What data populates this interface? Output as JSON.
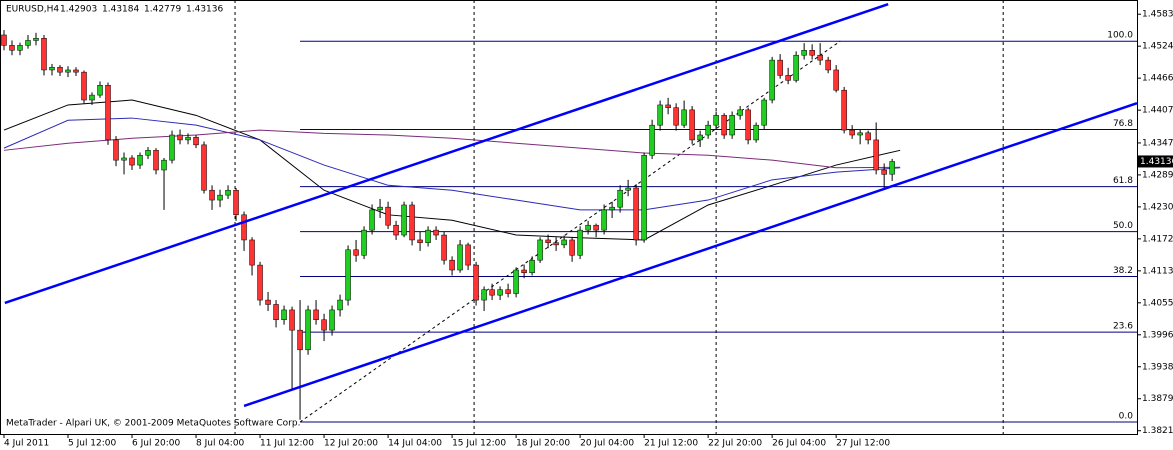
{
  "chart_data": {
    "type": "candlestick",
    "symbol": "EURUSD,H4",
    "footer": "MetaTrader - Alpari UK, © 2001-2009 MetaQuotes Software Corp.",
    "bull_color": "#22cc22",
    "bear_color": "#ff3333",
    "ylim": [
      1.3815,
      1.4609
    ],
    "xlim": [
      -0.5,
      141.6
    ],
    "yticks": [
      {
        "value": 1.4583,
        "label": "1.45830"
      },
      {
        "value": 1.45245,
        "label": "1.45245"
      },
      {
        "value": 1.4466,
        "label": "1.44660"
      },
      {
        "value": 1.44075,
        "label": "1.44075"
      },
      {
        "value": 1.43475,
        "label": "1.43475"
      },
      {
        "value": 1.4289,
        "label": "1.42890"
      },
      {
        "value": 1.42305,
        "label": "1.42305"
      },
      {
        "value": 1.4172,
        "label": "1.41720"
      },
      {
        "value": 1.41135,
        "label": "1.41135"
      },
      {
        "value": 1.4055,
        "label": "1.40550"
      },
      {
        "value": 1.39965,
        "label": "1.39965"
      },
      {
        "value": 1.3938,
        "label": "1.39380"
      },
      {
        "value": 1.38795,
        "label": "1.38795"
      },
      {
        "value": 1.3821,
        "label": "1.38210"
      }
    ],
    "xticks": [
      {
        "value": 0,
        "label": "4 Jul 2011"
      },
      {
        "value": 8,
        "label": "5 Jul 12:00"
      },
      {
        "value": 16,
        "label": "6 Jul 20:00"
      },
      {
        "value": 24,
        "label": "8 Jul 04:00"
      },
      {
        "value": 32,
        "label": "11 Jul 12:00"
      },
      {
        "value": 40,
        "label": "12 Jul 20:00"
      },
      {
        "value": 48,
        "label": "14 Jul 04:00"
      },
      {
        "value": 56,
        "label": "15 Jul 12:00"
      },
      {
        "value": 64,
        "label": "18 Jul 20:00"
      },
      {
        "value": 72,
        "label": "20 Jul 04:00"
      },
      {
        "value": 80,
        "label": "21 Jul 12:00"
      },
      {
        "value": 88,
        "label": "22 Jul 20:00"
      },
      {
        "value": 96,
        "label": "26 Jul 04:00"
      },
      {
        "value": 104,
        "label": "27 Jul 12:00"
      }
    ],
    "separators": [
      28.875,
      58.75,
      89,
      124.875
    ],
    "candles": [
      [
        1.4545,
        1.4554,
        1.4517,
        1.4526
      ],
      [
        1.4526,
        1.4535,
        1.4508,
        1.4517
      ],
      [
        1.4517,
        1.4531,
        1.4508,
        1.4526
      ],
      [
        1.4526,
        1.4545,
        1.452,
        1.4535
      ],
      [
        1.4535,
        1.4549,
        1.4526,
        1.4539
      ],
      [
        1.4539,
        1.4545,
        1.4471,
        1.4481
      ],
      [
        1.4481,
        1.4492,
        1.4471,
        1.4486
      ],
      [
        1.4486,
        1.449,
        1.447,
        1.4477
      ],
      [
        1.4477,
        1.4488,
        1.4468,
        1.4481
      ],
      [
        1.4481,
        1.4486,
        1.447,
        1.4477
      ],
      [
        1.4477,
        1.448,
        1.442,
        1.4426
      ],
      [
        1.4426,
        1.444,
        1.4417,
        1.4435
      ],
      [
        1.4435,
        1.446,
        1.443,
        1.4453
      ],
      [
        1.4453,
        1.4458,
        1.4344,
        1.4353
      ],
      [
        1.4353,
        1.436,
        1.4305,
        1.4316
      ],
      [
        1.4316,
        1.433,
        1.429,
        1.432
      ],
      [
        1.432,
        1.4325,
        1.4298,
        1.4307
      ],
      [
        1.4307,
        1.433,
        1.43,
        1.4325
      ],
      [
        1.4325,
        1.434,
        1.4318,
        1.4334
      ],
      [
        1.4334,
        1.4338,
        1.429,
        1.4298
      ],
      [
        1.4298,
        1.432,
        1.4225,
        1.4316
      ],
      [
        1.4316,
        1.437,
        1.431,
        1.4362
      ],
      [
        1.4362,
        1.4372,
        1.4345,
        1.4353
      ],
      [
        1.4353,
        1.4365,
        1.4345,
        1.4358
      ],
      [
        1.4358,
        1.4362,
        1.4338,
        1.4344
      ],
      [
        1.4344,
        1.435,
        1.4255,
        1.4261
      ],
      [
        1.4261,
        1.427,
        1.4225,
        1.4243
      ],
      [
        1.4243,
        1.4262,
        1.423,
        1.4252
      ],
      [
        1.4252,
        1.427,
        1.4245,
        1.4261
      ],
      [
        1.4261,
        1.4265,
        1.4205,
        1.4216
      ],
      [
        1.4216,
        1.4222,
        1.415,
        1.417
      ],
      [
        1.417,
        1.4175,
        1.4105,
        1.4124
      ],
      [
        1.4124,
        1.413,
        1.405,
        1.406
      ],
      [
        1.406,
        1.4075,
        1.404,
        1.4052
      ],
      [
        1.4052,
        1.406,
        1.401,
        1.4024
      ],
      [
        1.4024,
        1.405,
        1.4015,
        1.4042
      ],
      [
        1.4042,
        1.4048,
        1.3896,
        1.4005
      ],
      [
        1.4005,
        1.406,
        1.3841,
        1.3969
      ],
      [
        1.3969,
        1.405,
        1.396,
        1.4042
      ],
      [
        1.4042,
        1.406,
        1.4015,
        1.4024
      ],
      [
        1.4024,
        1.4035,
        1.3985,
        1.4005
      ],
      [
        1.4005,
        1.405,
        1.3995,
        1.4042
      ],
      [
        1.4042,
        1.407,
        1.403,
        1.406
      ],
      [
        1.406,
        1.416,
        1.405,
        1.4152
      ],
      [
        1.4152,
        1.417,
        1.413,
        1.4142
      ],
      [
        1.4142,
        1.4195,
        1.4135,
        1.4188
      ],
      [
        1.4188,
        1.4235,
        1.418,
        1.4225
      ],
      [
        1.4225,
        1.4245,
        1.421,
        1.423
      ],
      [
        1.423,
        1.424,
        1.419,
        1.4197
      ],
      [
        1.4197,
        1.4205,
        1.417,
        1.4179
      ],
      [
        1.4179,
        1.424,
        1.4175,
        1.4234
      ],
      [
        1.4234,
        1.424,
        1.416,
        1.417
      ],
      [
        1.417,
        1.4185,
        1.415,
        1.4165
      ],
      [
        1.4165,
        1.4195,
        1.4158,
        1.4188
      ],
      [
        1.4188,
        1.4195,
        1.417,
        1.4179
      ],
      [
        1.4179,
        1.4185,
        1.4125,
        1.4133
      ],
      [
        1.4133,
        1.414,
        1.4105,
        1.4115
      ],
      [
        1.4115,
        1.417,
        1.411,
        1.4161
      ],
      [
        1.4161,
        1.4165,
        1.4115,
        1.4124
      ],
      [
        1.4124,
        1.413,
        1.405,
        1.406
      ],
      [
        1.406,
        1.4085,
        1.404,
        1.4079
      ],
      [
        1.4079,
        1.409,
        1.406,
        1.4069
      ],
      [
        1.4069,
        1.4085,
        1.406,
        1.4079
      ],
      [
        1.4079,
        1.409,
        1.4065,
        1.4072
      ],
      [
        1.4072,
        1.412,
        1.4065,
        1.4115
      ],
      [
        1.4115,
        1.4125,
        1.41,
        1.411
      ],
      [
        1.411,
        1.414,
        1.4105,
        1.4133
      ],
      [
        1.4133,
        1.4175,
        1.4128,
        1.417
      ],
      [
        1.417,
        1.418,
        1.4155,
        1.4165
      ],
      [
        1.4165,
        1.4175,
        1.415,
        1.4161
      ],
      [
        1.4161,
        1.4178,
        1.4155,
        1.417
      ],
      [
        1.417,
        1.4175,
        1.413,
        1.4142
      ],
      [
        1.4142,
        1.4195,
        1.4135,
        1.4188
      ],
      [
        1.4188,
        1.4205,
        1.418,
        1.4197
      ],
      [
        1.4197,
        1.42,
        1.4175,
        1.4188
      ],
      [
        1.4188,
        1.4235,
        1.418,
        1.4225
      ],
      [
        1.4225,
        1.424,
        1.421,
        1.423
      ],
      [
        1.423,
        1.427,
        1.422,
        1.4261
      ],
      [
        1.4261,
        1.428,
        1.425,
        1.4265
      ],
      [
        1.4265,
        1.4272,
        1.416,
        1.417
      ],
      [
        1.417,
        1.433,
        1.4165,
        1.4325
      ],
      [
        1.4325,
        1.439,
        1.4318,
        1.438
      ],
      [
        1.438,
        1.4425,
        1.437,
        1.4417
      ],
      [
        1.4417,
        1.443,
        1.44,
        1.4412
      ],
      [
        1.4412,
        1.442,
        1.437,
        1.438
      ],
      [
        1.438,
        1.4425,
        1.4375,
        1.4408
      ],
      [
        1.4408,
        1.4415,
        1.4345,
        1.4353
      ],
      [
        1.4353,
        1.437,
        1.434,
        1.4362
      ],
      [
        1.4362,
        1.4388,
        1.4355,
        1.438
      ],
      [
        1.438,
        1.4405,
        1.4372,
        1.4398
      ],
      [
        1.4398,
        1.4402,
        1.4355,
        1.4362
      ],
      [
        1.4362,
        1.4405,
        1.4355,
        1.4398
      ],
      [
        1.4398,
        1.4415,
        1.439,
        1.4408
      ],
      [
        1.4408,
        1.4412,
        1.4345,
        1.4353
      ],
      [
        1.4353,
        1.4385,
        1.4348,
        1.438
      ],
      [
        1.438,
        1.443,
        1.4372,
        1.4426
      ],
      [
        1.4426,
        1.4505,
        1.442,
        1.4499
      ],
      [
        1.4499,
        1.451,
        1.4465,
        1.4471
      ],
      [
        1.4471,
        1.4485,
        1.4455,
        1.4462
      ],
      [
        1.4462,
        1.4515,
        1.4458,
        1.4508
      ],
      [
        1.4508,
        1.453,
        1.45,
        1.4517
      ],
      [
        1.4517,
        1.4528,
        1.45,
        1.4508
      ],
      [
        1.4508,
        1.453,
        1.449,
        1.4499
      ],
      [
        1.4499,
        1.4505,
        1.4475,
        1.4481
      ],
      [
        1.4481,
        1.449,
        1.444,
        1.4444
      ],
      [
        1.4444,
        1.445,
        1.4365,
        1.4371
      ],
      [
        1.4371,
        1.438,
        1.4355,
        1.4362
      ],
      [
        1.4362,
        1.4372,
        1.4345,
        1.4366
      ],
      [
        1.4366,
        1.437,
        1.4345,
        1.4353
      ],
      [
        1.4353,
        1.4385,
        1.429,
        1.4298
      ],
      [
        1.4298,
        1.431,
        1.4265,
        1.429
      ],
      [
        1.42903,
        1.43184,
        1.42779,
        1.43136
      ]
    ],
    "ma_x": [
      0,
      8,
      16,
      24,
      32,
      40,
      48,
      56,
      64,
      72,
      80,
      88,
      96,
      104,
      112
    ],
    "moving_averages": [
      {
        "color": "#000000",
        "values": [
          1.4371,
          1.4417,
          1.4426,
          1.4398,
          1.4353,
          1.4261,
          1.4216,
          1.4206,
          1.4179,
          1.4174,
          1.417,
          1.4234,
          1.427,
          1.4307,
          1.4334
        ]
      },
      {
        "color": "#2a2ab8",
        "values": [
          1.4338,
          1.4389,
          1.4393,
          1.438,
          1.4353,
          1.4307,
          1.427,
          1.4261,
          1.4243,
          1.4225,
          1.4225,
          1.4243,
          1.428,
          1.4294,
          1.4302
        ]
      },
      {
        "color": "#7a2a7a",
        "values": [
          1.4334,
          1.4347,
          1.4356,
          1.4362,
          1.4371,
          1.4365,
          1.4362,
          1.4356,
          1.4347,
          1.4338,
          1.4329,
          1.4325,
          1.4316,
          1.4302,
          1.4303
        ]
      }
    ],
    "trendlines": [
      {
        "color": "#0000ff",
        "x": [
          0.1,
          110.5
        ],
        "y": [
          1.40547,
          1.46013
        ]
      },
      {
        "color": "#0000ff",
        "x": [
          30,
          141.6
        ],
        "y": [
          1.38664,
          1.44203
        ]
      }
    ],
    "fib": {
      "color": "#000080",
      "x": [
        37,
        104.5
      ],
      "low": 1.3837,
      "high": 1.45336,
      "levels": [
        {
          "value": 100,
          "label": "100.0"
        },
        {
          "value": 76.8,
          "label": "76.8"
        },
        {
          "value": 61.8,
          "label": "61.8"
        },
        {
          "value": 50,
          "label": "50.0"
        },
        {
          "value": 38.2,
          "label": "38.2"
        },
        {
          "value": 23.6,
          "label": "23.6"
        },
        {
          "value": 0,
          "label": "0.0"
        }
      ]
    }
  }
}
